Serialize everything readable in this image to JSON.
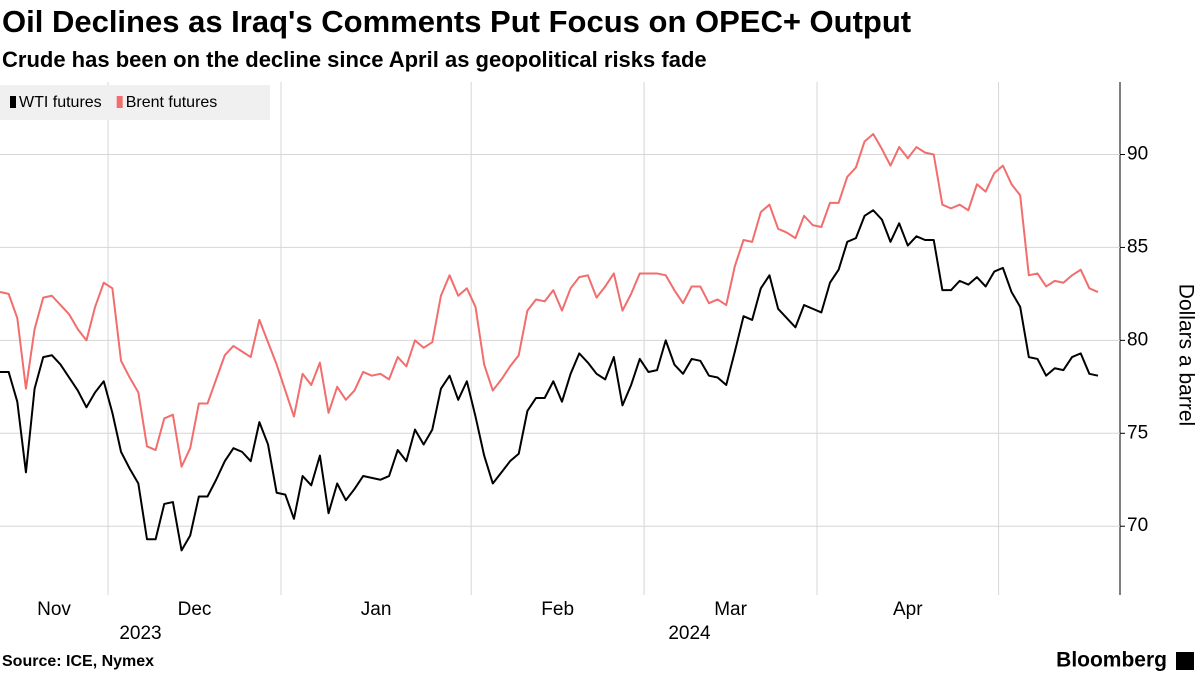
{
  "chart_data": {
    "type": "line",
    "title": "Oil Declines as Iraq's Comments Put Focus on OPEC+ Output",
    "subtitle": "Crude has been on the decline since April as geopolitical risks fade",
    "y_axis_label": "Dollars a barrel",
    "source": "Source: ICE, Nymex",
    "brand": "Bloomberg",
    "legend": "top-left",
    "grid": true,
    "ylim": [
      66.3,
      93.9
    ],
    "yticks": [
      70,
      75,
      80,
      85,
      90
    ],
    "categories": [
      "Nov",
      "Nov",
      "Nov",
      "Nov",
      "Nov",
      "Nov",
      "Nov",
      "Nov",
      "Nov",
      "Nov",
      "Nov",
      "Nov",
      "Nov",
      "Dec",
      "Dec",
      "Dec",
      "Dec",
      "Dec",
      "Dec",
      "Dec",
      "Dec",
      "Dec",
      "Dec",
      "Dec",
      "Dec",
      "Dec",
      "Dec",
      "Dec",
      "Dec",
      "Dec",
      "Dec",
      "Dec",
      "Dec",
      "Jan",
      "Jan",
      "Jan",
      "Jan",
      "Jan",
      "Jan",
      "Jan",
      "Jan",
      "Jan",
      "Jan",
      "Jan",
      "Jan",
      "Jan",
      "Jan",
      "Jan",
      "Jan",
      "Jan",
      "Jan",
      "Jan",
      "Jan",
      "Jan",
      "Jan",
      "Feb",
      "Feb",
      "Feb",
      "Feb",
      "Feb",
      "Feb",
      "Feb",
      "Feb",
      "Feb",
      "Feb",
      "Feb",
      "Feb",
      "Feb",
      "Feb",
      "Feb",
      "Feb",
      "Feb",
      "Feb",
      "Feb",
      "Feb",
      "Mar",
      "Mar",
      "Mar",
      "Mar",
      "Mar",
      "Mar",
      "Mar",
      "Mar",
      "Mar",
      "Mar",
      "Mar",
      "Mar",
      "Mar",
      "Mar",
      "Mar",
      "Mar",
      "Mar",
      "Mar",
      "Mar",
      "Mar",
      "Apr",
      "Apr",
      "Apr",
      "Apr",
      "Apr",
      "Apr",
      "Apr",
      "Apr",
      "Apr",
      "Apr",
      "Apr",
      "Apr",
      "Apr",
      "Apr",
      "Apr",
      "Apr",
      "Apr",
      "Apr",
      "Apr",
      "Apr",
      "Apr",
      null,
      null,
      null,
      null,
      null,
      null,
      null,
      null,
      null,
      null,
      null,
      null
    ],
    "years": [
      "2023",
      "2023",
      "2023",
      "2023",
      "2023",
      "2023",
      "2023",
      "2023",
      "2023",
      "2023",
      "2023",
      "2023",
      "2023",
      "2023",
      "2023",
      "2023",
      "2023",
      "2023",
      "2023",
      "2023",
      "2023",
      "2023",
      "2023",
      "2023",
      "2023",
      "2023",
      "2023",
      "2023",
      "2023",
      "2023",
      "2023",
      "2023",
      "2023",
      "2024",
      "2024",
      "2024",
      "2024",
      "2024",
      "2024",
      "2024",
      "2024",
      "2024",
      "2024",
      "2024",
      "2024",
      "2024",
      "2024",
      "2024",
      "2024",
      "2024",
      "2024",
      "2024",
      "2024",
      "2024",
      "2024",
      "2024",
      "2024",
      "2024",
      "2024",
      "2024",
      "2024",
      "2024",
      "2024",
      "2024",
      "2024",
      "2024",
      "2024",
      "2024",
      "2024",
      "2024",
      "2024",
      "2024",
      "2024",
      "2024",
      "2024",
      "2024",
      "2024",
      "2024",
      "2024",
      "2024",
      "2024",
      "2024",
      "2024",
      "2024",
      "2024",
      "2024",
      "2024",
      "2024",
      "2024",
      "2024",
      "2024",
      "2024",
      "2024",
      "2024",
      "2024",
      "2024",
      "2024",
      "2024",
      "2024",
      "2024",
      "2024",
      "2024",
      "2024",
      "2024",
      "2024",
      "2024",
      "2024",
      "2024",
      "2024",
      "2024",
      "2024",
      "2024",
      "2024",
      "2024",
      "2024",
      "2024",
      "2024",
      "2024",
      "2024",
      "2024",
      "2024",
      "2024",
      "2024",
      "2024",
      "2024",
      "2024",
      "2024",
      "2024"
    ],
    "series": [
      {
        "name": "WTI futures",
        "color": "#000000",
        "values": [
          78.3,
          78.3,
          76.7,
          72.9,
          77.4,
          79.1,
          79.2,
          78.7,
          78.0,
          77.3,
          76.4,
          77.2,
          77.8,
          76.1,
          74.0,
          73.1,
          72.3,
          69.3,
          69.3,
          71.2,
          71.3,
          68.7,
          69.5,
          71.6,
          71.6,
          72.5,
          73.5,
          74.2,
          74.0,
          73.5,
          75.6,
          74.4,
          71.8,
          71.7,
          70.4,
          72.7,
          72.2,
          73.8,
          70.7,
          72.3,
          71.4,
          72.0,
          72.7,
          72.6,
          72.5,
          72.7,
          74.1,
          73.5,
          75.2,
          74.4,
          75.2,
          77.4,
          78.1,
          76.8,
          77.8,
          75.9,
          73.8,
          72.3,
          72.9,
          73.5,
          73.9,
          76.2,
          76.9,
          76.9,
          77.8,
          76.7,
          78.2,
          79.3,
          78.8,
          78.2,
          77.9,
          79.1,
          76.5,
          77.6,
          79.0,
          78.3,
          78.4,
          80.0,
          78.7,
          78.2,
          79.0,
          78.9,
          78.1,
          78.0,
          77.6,
          79.4,
          81.3,
          81.1,
          82.8,
          83.5,
          81.7,
          81.2,
          80.7,
          81.9,
          81.7,
          81.5,
          83.1,
          83.8,
          85.3,
          85.5,
          86.7,
          87.0,
          86.5,
          85.3,
          86.3,
          85.1,
          85.6,
          85.4,
          85.4,
          82.7,
          82.7,
          83.2,
          83.0,
          83.4,
          82.9,
          83.7,
          83.9,
          82.6,
          81.8,
          79.1,
          79.0,
          78.1,
          78.5,
          78.4,
          79.1,
          79.3,
          78.2,
          78.1
        ]
      },
      {
        "name": "Brent futures",
        "color": "#f26d6d",
        "values": [
          82.6,
          82.5,
          81.2,
          77.4,
          80.6,
          82.3,
          82.4,
          81.9,
          81.4,
          80.6,
          80.0,
          81.8,
          83.1,
          82.8,
          78.9,
          78.0,
          77.2,
          74.3,
          74.1,
          75.8,
          76.0,
          73.2,
          74.2,
          76.6,
          76.6,
          77.9,
          79.2,
          79.7,
          79.4,
          79.1,
          81.1,
          79.9,
          78.7,
          77.3,
          75.9,
          78.2,
          77.6,
          78.8,
          76.1,
          77.5,
          76.8,
          77.3,
          78.3,
          78.1,
          78.2,
          77.9,
          79.1,
          78.6,
          80.0,
          79.6,
          79.9,
          82.4,
          83.5,
          82.4,
          82.8,
          81.8,
          78.7,
          77.3,
          77.9,
          78.6,
          79.2,
          81.6,
          82.2,
          82.1,
          82.7,
          81.6,
          82.8,
          83.4,
          83.5,
          82.3,
          82.9,
          83.6,
          81.6,
          82.5,
          83.6,
          83.6,
          83.6,
          83.5,
          82.7,
          82.0,
          82.9,
          82.9,
          82.0,
          82.2,
          81.9,
          84.0,
          85.4,
          85.3,
          86.9,
          87.3,
          86.0,
          85.8,
          85.5,
          86.7,
          86.2,
          86.1,
          87.4,
          87.4,
          88.8,
          89.3,
          90.7,
          91.1,
          90.3,
          89.4,
          90.4,
          89.8,
          90.4,
          90.1,
          90.0,
          87.3,
          87.1,
          87.3,
          87.0,
          88.4,
          88.0,
          89.0,
          89.4,
          88.4,
          87.8,
          83.5,
          83.6,
          82.9,
          83.2,
          83.1,
          83.5,
          83.8,
          82.8,
          82.6
        ]
      }
    ]
  }
}
